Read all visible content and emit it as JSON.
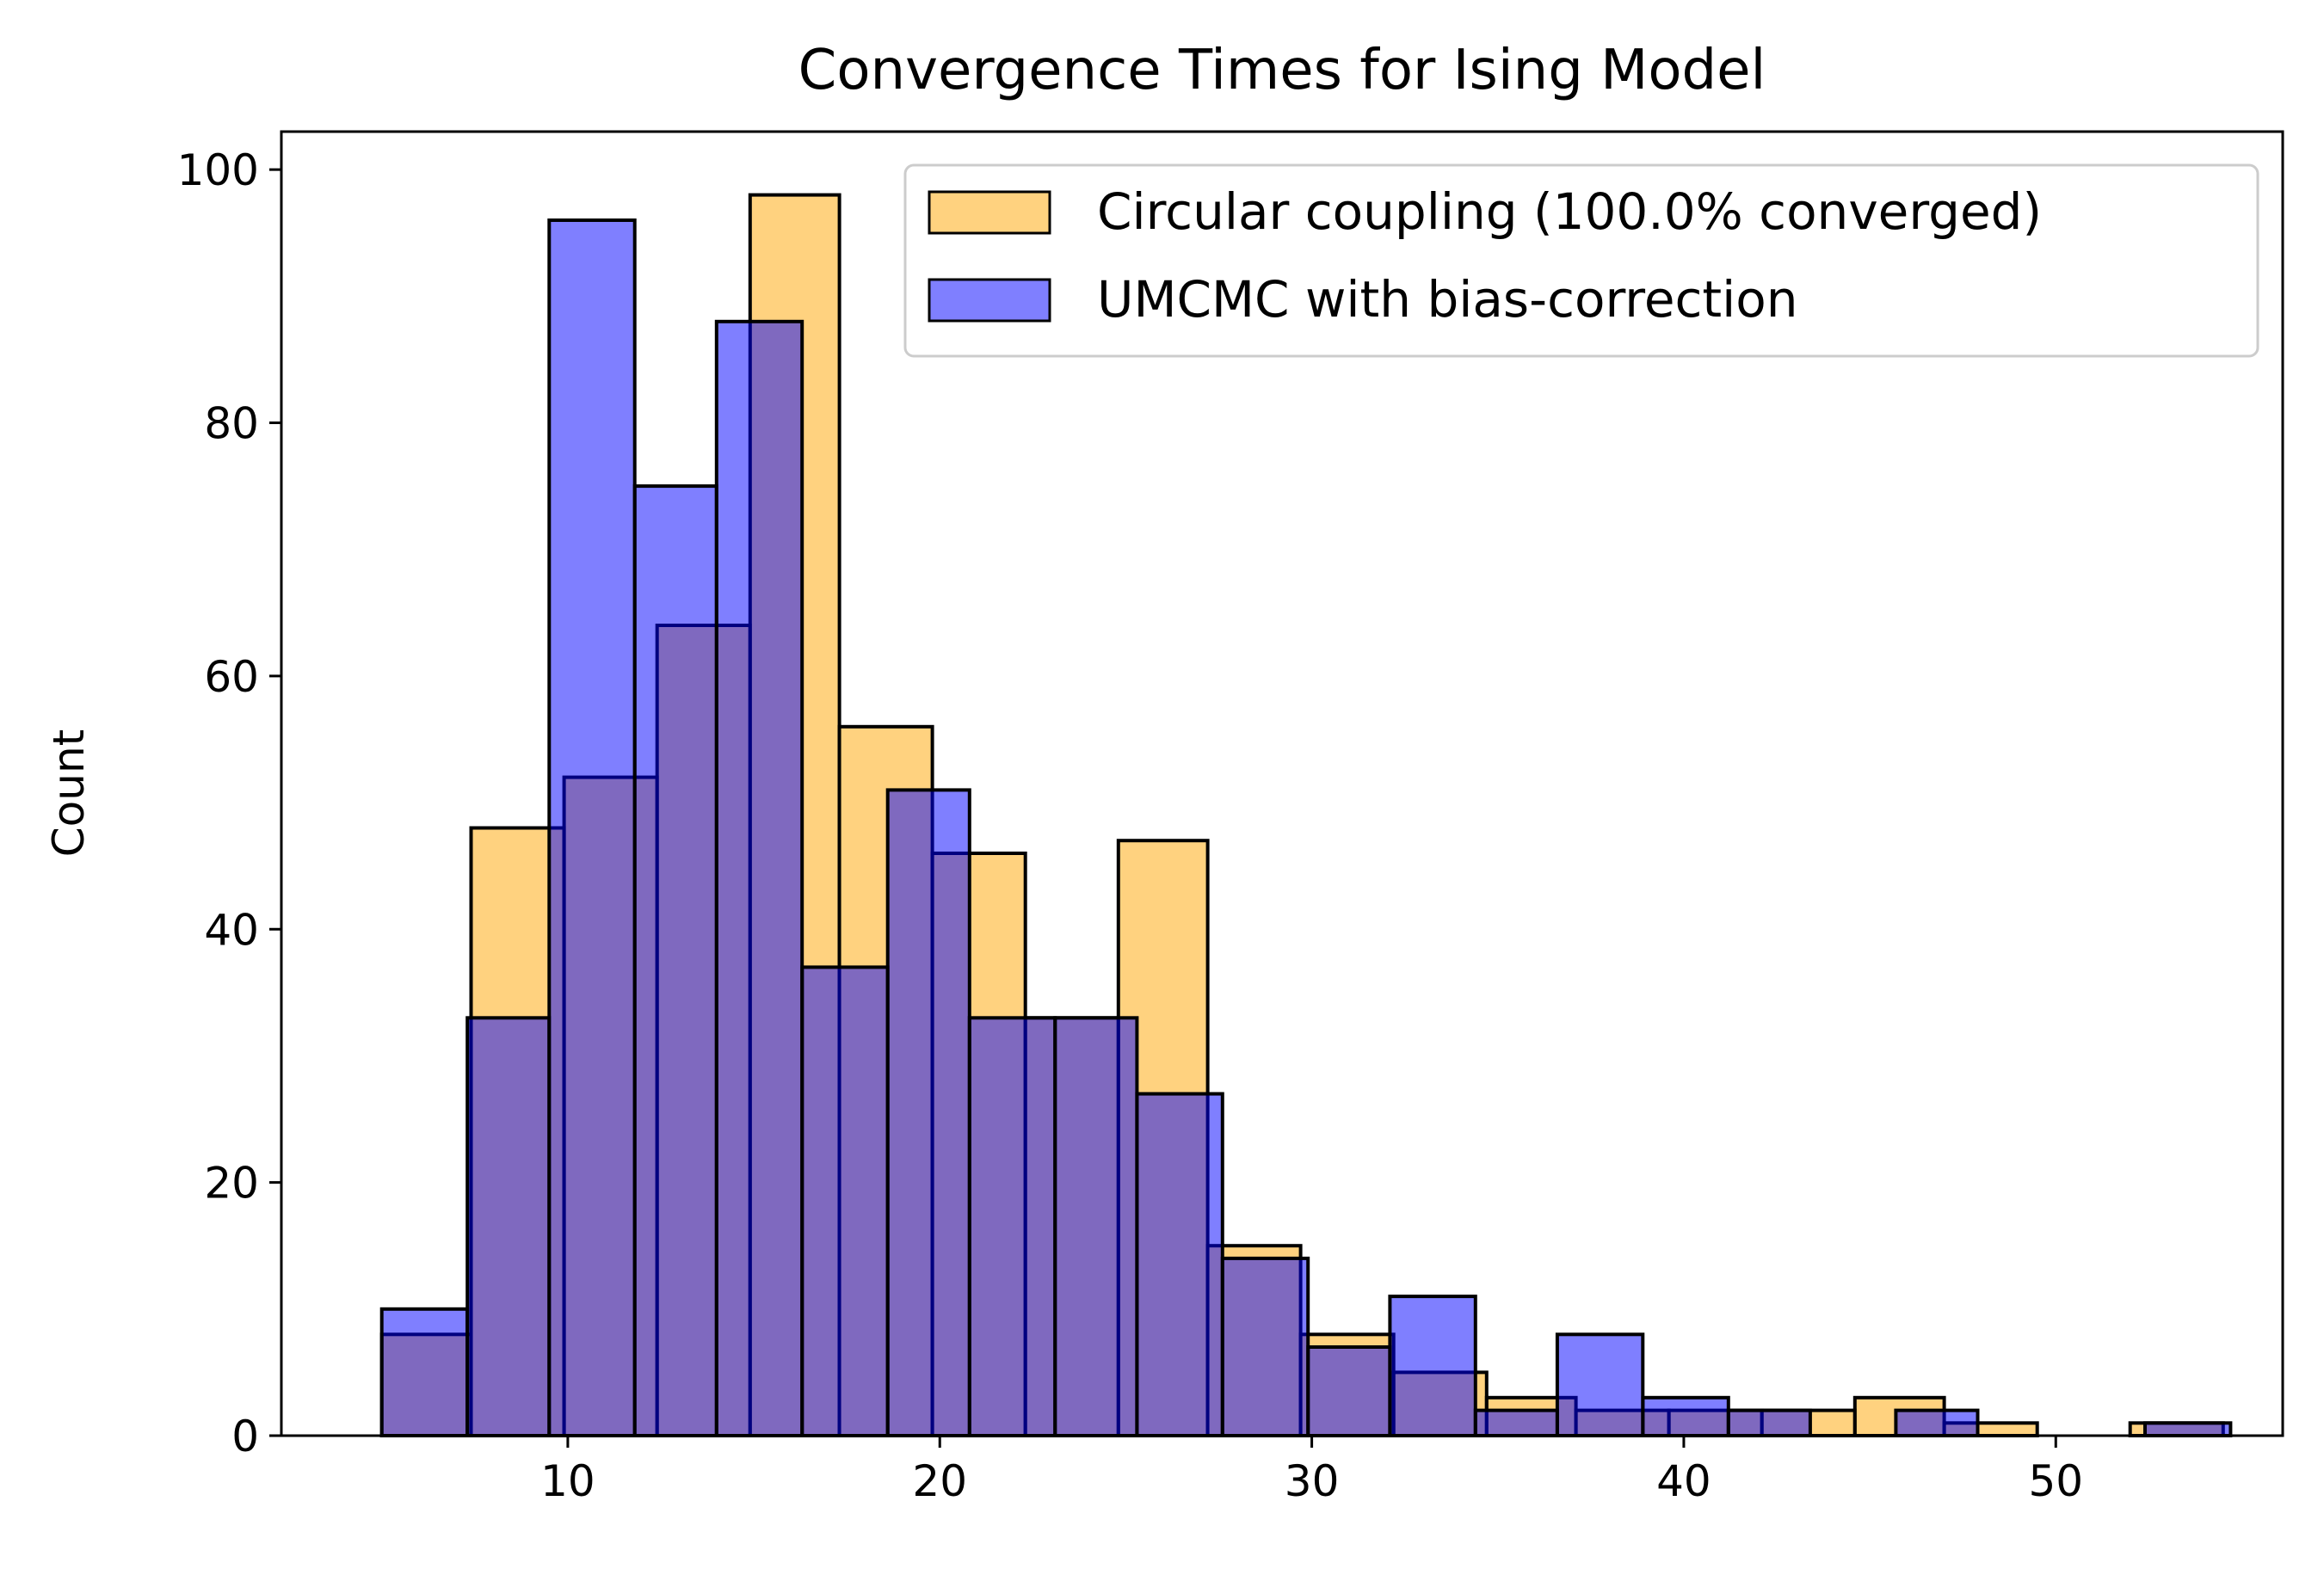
{
  "chart_data": {
    "type": "bar",
    "title": "Convergence Times for Ising Model",
    "xlabel": "",
    "ylabel": "Count",
    "xlim": [
      2.3,
      56.1
    ],
    "ylim": [
      0,
      103
    ],
    "xticks": [
      10,
      20,
      30,
      40,
      50
    ],
    "yticks": [
      0,
      20,
      40,
      60,
      80,
      100
    ],
    "grid": false,
    "legend_position": "top-right",
    "series": [
      {
        "name": "Circular coupling (100.0% converged)",
        "color": "#ffa500",
        "alpha": 0.5,
        "bins": [
          [
            5.0,
            7.4,
            8
          ],
          [
            7.4,
            9.9,
            48
          ],
          [
            9.9,
            12.4,
            52
          ],
          [
            12.4,
            14.9,
            64
          ],
          [
            14.9,
            17.3,
            98
          ],
          [
            17.3,
            19.8,
            56
          ],
          [
            19.8,
            22.3,
            46
          ],
          [
            22.3,
            24.8,
            33
          ],
          [
            24.8,
            27.2,
            47
          ],
          [
            27.2,
            29.7,
            15
          ],
          [
            29.7,
            32.2,
            8
          ],
          [
            32.2,
            34.7,
            5
          ],
          [
            34.7,
            37.1,
            3
          ],
          [
            37.1,
            39.6,
            2
          ],
          [
            39.6,
            42.1,
            2
          ],
          [
            42.1,
            44.6,
            2
          ],
          [
            44.6,
            47.0,
            3
          ],
          [
            47.0,
            49.5,
            1
          ],
          [
            49.5,
            52.0,
            0
          ],
          [
            52.0,
            54.5,
            1
          ]
        ]
      },
      {
        "name": "UMCMC with bias-correction",
        "color": "#0000ff",
        "alpha": 0.5,
        "bins": [
          [
            5.0,
            7.3,
            10
          ],
          [
            7.3,
            9.5,
            33
          ],
          [
            9.5,
            11.8,
            96
          ],
          [
            11.8,
            14.0,
            75
          ],
          [
            14.0,
            16.3,
            88
          ],
          [
            16.3,
            18.6,
            37
          ],
          [
            18.6,
            20.8,
            51
          ],
          [
            20.8,
            23.1,
            33
          ],
          [
            23.1,
            25.3,
            33
          ],
          [
            25.3,
            27.6,
            27
          ],
          [
            27.6,
            29.9,
            14
          ],
          [
            29.9,
            32.1,
            7
          ],
          [
            32.1,
            34.4,
            11
          ],
          [
            34.4,
            36.6,
            2
          ],
          [
            36.6,
            38.9,
            8
          ],
          [
            38.9,
            41.2,
            3
          ],
          [
            41.2,
            43.4,
            2
          ],
          [
            43.4,
            45.7,
            0
          ],
          [
            45.7,
            47.9,
            2
          ],
          [
            47.9,
            50.2,
            0
          ],
          [
            50.2,
            52.4,
            0
          ],
          [
            52.4,
            54.7,
            1
          ]
        ]
      }
    ]
  }
}
